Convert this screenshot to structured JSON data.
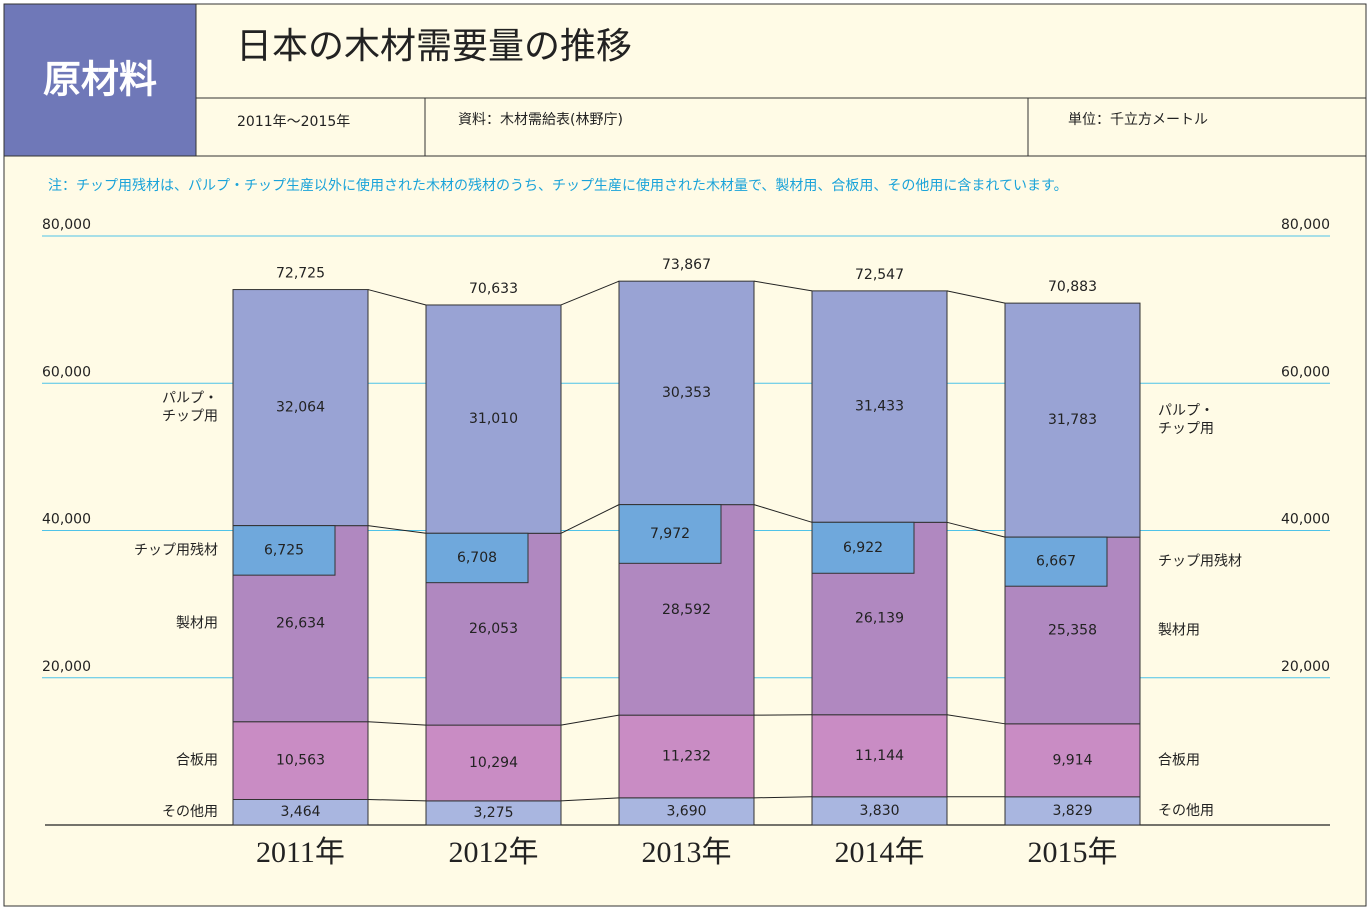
{
  "header": {
    "badge": "原材料",
    "title": "日本の木材需要量の推移",
    "period": "2011年～2015年",
    "source": "資料：木材需給表(林野庁)",
    "unit": "単位：千立方メートル"
  },
  "note": "注：チップ用残材は、パルプ・チップ生産以外に使用された木材の残材のうち、チップ生産に使用された木材量で、製材用、合板用、その他用に含まれています。",
  "chart_data": {
    "type": "stacked_bar",
    "categories": [
      "2011年",
      "2012年",
      "2013年",
      "2014年",
      "2015年"
    ],
    "ylim": [
      0,
      80000
    ],
    "yticks": [
      {
        "value": 20000,
        "label": "20,000"
      },
      {
        "value": 40000,
        "label": "40,000"
      },
      {
        "value": 60000,
        "label": "60,000"
      },
      {
        "value": 80000,
        "label": "80,000"
      }
    ],
    "grid": true,
    "series": [
      {
        "name": "その他用",
        "color": "#a9b6e0",
        "values": [
          3464,
          3275,
          3690,
          3830,
          3829
        ],
        "value_labels": [
          "3,464",
          "3,275",
          "3,690",
          "3,830",
          "3,829"
        ]
      },
      {
        "name": "合板用",
        "color": "#c98cc4",
        "values": [
          10563,
          10294,
          11232,
          11144,
          9914
        ],
        "value_labels": [
          "10,563",
          "10,294",
          "11,232",
          "11,144",
          "9,914"
        ]
      },
      {
        "name": "製材用",
        "color": "#b088c0",
        "values": [
          26634,
          26053,
          28592,
          26139,
          25358
        ],
        "value_labels": [
          "26,634",
          "26,053",
          "28,592",
          "26,139",
          "25,358"
        ]
      },
      {
        "name": "パルプ・\nチップ用",
        "color": "#99a3d4",
        "values": [
          32064,
          31010,
          30353,
          31433,
          31783
        ],
        "value_labels": [
          "32,064",
          "31,010",
          "30,353",
          "31,433",
          "31,783"
        ]
      }
    ],
    "overlay": {
      "name": "チップ用残材",
      "color": "#6fa8dc",
      "values": [
        6725,
        6708,
        7972,
        6922,
        6667
      ],
      "value_labels": [
        "6,725",
        "6,708",
        "7,972",
        "6,922",
        "6,667"
      ]
    },
    "totals": [
      72725,
      70633,
      73867,
      72547,
      70883
    ],
    "total_labels": [
      "72,725",
      "70,633",
      "73,867",
      "72,547",
      "70,883"
    ]
  }
}
